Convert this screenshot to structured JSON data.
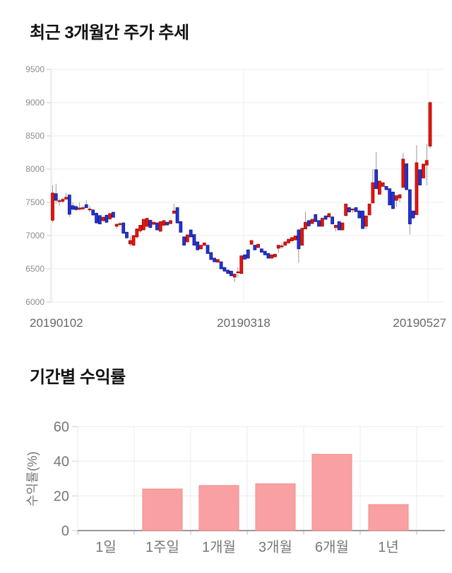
{
  "chart_data": [
    {
      "type": "candlestick",
      "title": "최근 3개월간 주가 추세",
      "y_ticks": [
        9500,
        9000,
        8500,
        8000,
        7500,
        7000,
        6500,
        6000
      ],
      "y_range": [
        6000,
        9500
      ],
      "x_tick_labels": [
        "20190102",
        "20190318",
        "20190527"
      ],
      "up_color": "#e8140c",
      "up_border": "#9c0b06",
      "down_color": "#2433d6",
      "down_border": "#141c86",
      "wick_color": "#999999",
      "candles": [
        [
          7230,
          7760,
          7200,
          7640
        ],
        [
          7630,
          7780,
          7480,
          7530
        ],
        [
          7515,
          7560,
          7450,
          7525
        ],
        [
          7515,
          7570,
          7490,
          7545
        ],
        [
          7550,
          7640,
          7530,
          7575
        ],
        [
          7610,
          7620,
          7280,
          7320
        ],
        [
          7450,
          7500,
          7380,
          7395
        ],
        [
          7435,
          7460,
          7370,
          7390
        ],
        [
          7395,
          7500,
          7380,
          7415
        ],
        [
          7400,
          7450,
          7390,
          7420
        ],
        [
          7465,
          7530,
          7410,
          7420
        ],
        [
          7400,
          7450,
          7350,
          7400
        ],
        [
          7385,
          7400,
          7290,
          7310
        ],
        [
          7335,
          7350,
          7180,
          7190
        ],
        [
          7300,
          7310,
          7170,
          7175
        ],
        [
          7225,
          7290,
          7200,
          7275
        ],
        [
          7305,
          7320,
          7190,
          7200
        ],
        [
          7250,
          7340,
          7240,
          7330
        ],
        [
          7350,
          7360,
          7270,
          7275
        ],
        [
          7140,
          7180,
          7100,
          7170
        ],
        [
          7180,
          7200,
          7130,
          7180
        ],
        [
          7190,
          7200,
          7030,
          7035
        ],
        [
          7050,
          7060,
          6960,
          6965
        ],
        [
          6875,
          6990,
          6840,
          6925
        ],
        [
          6855,
          7010,
          6840,
          7000
        ],
        [
          6980,
          7110,
          6950,
          7100
        ],
        [
          7070,
          7160,
          7040,
          7155
        ],
        [
          7085,
          7250,
          7085,
          7245
        ],
        [
          7140,
          7270,
          7130,
          7260
        ],
        [
          7230,
          7240,
          7110,
          7120
        ],
        [
          7170,
          7210,
          7150,
          7200
        ],
        [
          7190,
          7200,
          7080,
          7085
        ],
        [
          7065,
          7215,
          7060,
          7210
        ],
        [
          7155,
          7235,
          7150,
          7225
        ],
        [
          7200,
          7210,
          7150,
          7160
        ],
        [
          7180,
          7230,
          7170,
          7225
        ],
        [
          7335,
          7480,
          7330,
          7370
        ],
        [
          7420,
          7430,
          7180,
          7190
        ],
        [
          7210,
          7220,
          7040,
          7050
        ],
        [
          6980,
          6990,
          6850,
          6855
        ],
        [
          6905,
          7020,
          6895,
          7010
        ],
        [
          7085,
          7090,
          6975,
          6980
        ],
        [
          7015,
          7020,
          6850,
          6855
        ],
        [
          6905,
          6910,
          6780,
          6785
        ],
        [
          6800,
          6860,
          6790,
          6855
        ],
        [
          6855,
          6895,
          6840,
          6890
        ],
        [
          6855,
          6860,
          6725,
          6730
        ],
        [
          6745,
          6750,
          6635,
          6640
        ],
        [
          6660,
          6670,
          6600,
          6605
        ],
        [
          6600,
          6650,
          6590,
          6640
        ],
        [
          6605,
          6610,
          6495,
          6500
        ],
        [
          6520,
          6530,
          6460,
          6465
        ],
        [
          6480,
          6490,
          6425,
          6430
        ],
        [
          6465,
          6470,
          6390,
          6395
        ],
        [
          6375,
          6430,
          6300,
          6420
        ],
        [
          6450,
          6520,
          6370,
          6455
        ],
        [
          6430,
          6700,
          6420,
          6695
        ],
        [
          6710,
          6720,
          6640,
          6645
        ],
        [
          6785,
          6790,
          6655,
          6660
        ],
        [
          6870,
          6930,
          6860,
          6925
        ],
        [
          6855,
          6860,
          6780,
          6785
        ],
        [
          6820,
          6875,
          6810,
          6870
        ],
        [
          6800,
          6810,
          6745,
          6750
        ],
        [
          6765,
          6770,
          6705,
          6710
        ],
        [
          6730,
          6740,
          6655,
          6660
        ],
        [
          6660,
          6715,
          6650,
          6710
        ],
        [
          6680,
          6725,
          6670,
          6720
        ],
        [
          6810,
          6860,
          6740,
          6855
        ],
        [
          6840,
          6890,
          6800,
          6845
        ],
        [
          6855,
          6910,
          6845,
          6905
        ],
        [
          6890,
          6950,
          6880,
          6945
        ],
        [
          6920,
          6975,
          6910,
          6970
        ],
        [
          6935,
          7000,
          6925,
          6995
        ],
        [
          7085,
          7100,
          6590,
          6800
        ],
        [
          6855,
          7115,
          6850,
          7110
        ],
        [
          7100,
          7360,
          7095,
          7200
        ],
        [
          7225,
          7235,
          7140,
          7145
        ],
        [
          7180,
          7250,
          7175,
          7245
        ],
        [
          7315,
          7325,
          7205,
          7210
        ],
        [
          7225,
          7230,
          7135,
          7140
        ],
        [
          7140,
          7270,
          7135,
          7260
        ],
        [
          7295,
          7305,
          7240,
          7245
        ],
        [
          7280,
          7340,
          7270,
          7330
        ],
        [
          7280,
          7290,
          7170,
          7175
        ],
        [
          7120,
          7165,
          7060,
          7155
        ],
        [
          7210,
          7215,
          7080,
          7085
        ],
        [
          7085,
          7195,
          7080,
          7190
        ],
        [
          7300,
          7480,
          7295,
          7475
        ],
        [
          7420,
          7430,
          7350,
          7355
        ],
        [
          7390,
          7410,
          7340,
          7400
        ],
        [
          7420,
          7430,
          7355,
          7360
        ],
        [
          7370,
          7390,
          7260,
          7265
        ],
        [
          7370,
          7375,
          7100,
          7105
        ],
        [
          7140,
          7300,
          7100,
          7295
        ],
        [
          7310,
          7480,
          7305,
          7475
        ],
        [
          7490,
          8000,
          7485,
          7795
        ],
        [
          7990,
          8255,
          7700,
          7705
        ],
        [
          7620,
          7825,
          7615,
          7820
        ],
        [
          7740,
          7800,
          7735,
          7795
        ],
        [
          7740,
          7745,
          7685,
          7690
        ],
        [
          7705,
          7710,
          7455,
          7460
        ],
        [
          7655,
          7660,
          7400,
          7405
        ],
        [
          7530,
          7605,
          7430,
          7600
        ],
        [
          7565,
          7620,
          7500,
          7615
        ],
        [
          7725,
          8240,
          7720,
          8150
        ],
        [
          8080,
          8085,
          7685,
          7690
        ],
        [
          7690,
          7695,
          7015,
          7175
        ],
        [
          7370,
          7375,
          7240,
          7265
        ],
        [
          7315,
          8360,
          7310,
          8095
        ],
        [
          7990,
          7995,
          7755,
          7760
        ],
        [
          7865,
          8080,
          7860,
          8075
        ],
        [
          8060,
          8380,
          7755,
          8130
        ],
        [
          8345,
          9020,
          8310,
          9000
        ]
      ]
    },
    {
      "type": "bar",
      "title": "기간별 수익률",
      "ylabel": "수익률(%)",
      "categories": [
        "1일",
        "1주일",
        "1개월",
        "3개월",
        "6개월",
        "1년"
      ],
      "values": [
        0,
        24,
        26,
        27,
        44,
        15
      ],
      "y_ticks": [
        0,
        20,
        40,
        60
      ],
      "ylim": [
        0,
        60
      ],
      "bar_color": "#f9a1a2",
      "bar_border": "#f28b8b",
      "grid_color": "#ebebeb",
      "axis_color": "#999999",
      "text_color": "#777777"
    }
  ]
}
